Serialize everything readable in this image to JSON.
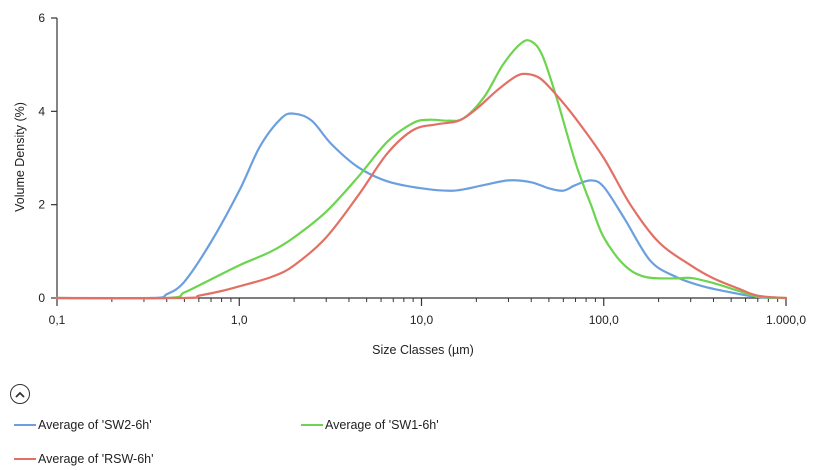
{
  "chart_data": {
    "type": "line",
    "xlabel": "Size Classes (µm)",
    "ylabel": "Volume Density (%)",
    "x_scale": "log",
    "xlim": [
      0.1,
      1000
    ],
    "ylim": [
      0,
      6
    ],
    "x_tick_labels": [
      {
        "value": 0.1,
        "label": "0,1"
      },
      {
        "value": 1,
        "label": "1,0"
      },
      {
        "value": 10,
        "label": "10,0"
      },
      {
        "value": 100,
        "label": "100,0"
      },
      {
        "value": 1000,
        "label": "1.000,0"
      }
    ],
    "y_tick_labels": [
      {
        "value": 0,
        "label": "0"
      },
      {
        "value": 2,
        "label": "2"
      },
      {
        "value": 4,
        "label": "4"
      },
      {
        "value": 6,
        "label": "6"
      }
    ],
    "grid": false,
    "legend_position": "bottom",
    "series": [
      {
        "name": "Average of 'SW2-6h'",
        "color": "#6b9fe0",
        "points": [
          [
            0.1,
            0
          ],
          [
            0.33,
            0
          ],
          [
            0.4,
            0.08
          ],
          [
            0.5,
            0.35
          ],
          [
            0.7,
            1.2
          ],
          [
            1.0,
            2.3
          ],
          [
            1.3,
            3.25
          ],
          [
            1.7,
            3.85
          ],
          [
            2.0,
            3.95
          ],
          [
            2.5,
            3.8
          ],
          [
            3.2,
            3.3
          ],
          [
            4.5,
            2.8
          ],
          [
            6.5,
            2.5
          ],
          [
            10,
            2.35
          ],
          [
            15,
            2.3
          ],
          [
            22,
            2.42
          ],
          [
            30,
            2.52
          ],
          [
            40,
            2.48
          ],
          [
            50,
            2.35
          ],
          [
            60,
            2.3
          ],
          [
            70,
            2.42
          ],
          [
            85,
            2.52
          ],
          [
            100,
            2.38
          ],
          [
            130,
            1.7
          ],
          [
            180,
            0.8
          ],
          [
            250,
            0.45
          ],
          [
            350,
            0.25
          ],
          [
            500,
            0.12
          ],
          [
            700,
            0.02
          ],
          [
            1000,
            0
          ]
        ]
      },
      {
        "name": "Average of 'SW1-6h'",
        "color": "#6cd44e",
        "points": [
          [
            0.1,
            0
          ],
          [
            0.4,
            0
          ],
          [
            0.5,
            0.12
          ],
          [
            0.7,
            0.4
          ],
          [
            1.0,
            0.7
          ],
          [
            1.5,
            1.0
          ],
          [
            2.0,
            1.3
          ],
          [
            3.0,
            1.85
          ],
          [
            4.5,
            2.6
          ],
          [
            6.5,
            3.35
          ],
          [
            9,
            3.75
          ],
          [
            11,
            3.82
          ],
          [
            14,
            3.8
          ],
          [
            17,
            3.85
          ],
          [
            22,
            4.3
          ],
          [
            28,
            5.0
          ],
          [
            35,
            5.45
          ],
          [
            40,
            5.5
          ],
          [
            46,
            5.2
          ],
          [
            55,
            4.3
          ],
          [
            70,
            2.9
          ],
          [
            85,
            2.0
          ],
          [
            100,
            1.3
          ],
          [
            130,
            0.7
          ],
          [
            170,
            0.45
          ],
          [
            250,
            0.42
          ],
          [
            300,
            0.43
          ],
          [
            400,
            0.32
          ],
          [
            550,
            0.15
          ],
          [
            700,
            0.03
          ],
          [
            1000,
            0
          ]
        ]
      },
      {
        "name": "Average of 'RSW-6h'",
        "color": "#e27065",
        "points": [
          [
            0.1,
            0
          ],
          [
            0.5,
            0
          ],
          [
            0.6,
            0.05
          ],
          [
            0.8,
            0.15
          ],
          [
            1.0,
            0.25
          ],
          [
            1.5,
            0.45
          ],
          [
            2.0,
            0.7
          ],
          [
            3.0,
            1.3
          ],
          [
            4.5,
            2.2
          ],
          [
            6.5,
            3.1
          ],
          [
            9,
            3.6
          ],
          [
            12,
            3.72
          ],
          [
            16,
            3.8
          ],
          [
            20,
            4.05
          ],
          [
            26,
            4.45
          ],
          [
            33,
            4.75
          ],
          [
            38,
            4.8
          ],
          [
            45,
            4.7
          ],
          [
            55,
            4.35
          ],
          [
            70,
            3.85
          ],
          [
            100,
            3.0
          ],
          [
            140,
            2.0
          ],
          [
            200,
            1.2
          ],
          [
            300,
            0.7
          ],
          [
            400,
            0.42
          ],
          [
            550,
            0.2
          ],
          [
            700,
            0.05
          ],
          [
            1000,
            0
          ]
        ]
      }
    ]
  }
}
